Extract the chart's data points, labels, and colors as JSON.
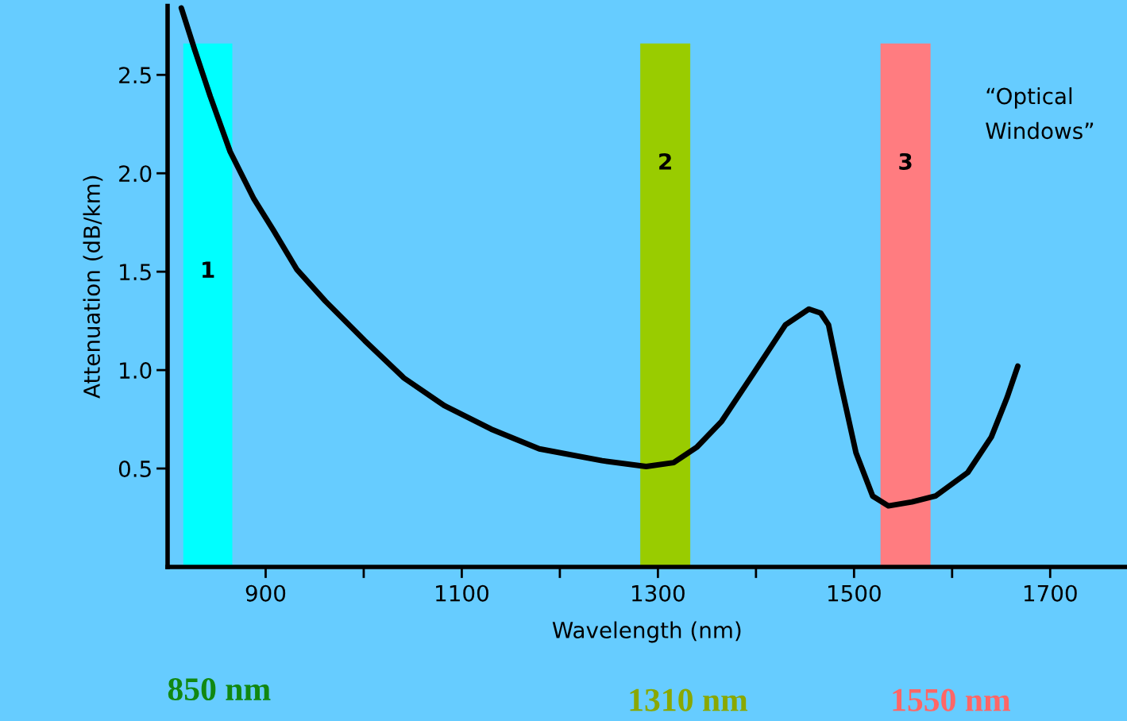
{
  "chart_data": {
    "type": "line",
    "xlabel": "Wavelength (nm)",
    "ylabel": "Attenuation (dB/km)",
    "xlim": [
      800,
      1778
    ],
    "ylim": [
      0,
      2.85
    ],
    "xticks": [
      900,
      {
        "value": 1000,
        "label": null
      },
      1100,
      {
        "value": 1200,
        "label": null
      },
      1300,
      {
        "value": 1400,
        "label": null
      },
      1500,
      {
        "value": 1600,
        "label": null
      },
      1700
    ],
    "yticks": [
      0.5,
      {
        "value": 1,
        "label": "1.0"
      },
      1.5,
      {
        "value": 2,
        "label": "2.0"
      },
      2.5
    ],
    "grid": false,
    "legend": false,
    "marker": "none",
    "line_style": "solid",
    "series": [
      {
        "color": "#000000",
        "x": [
          814,
          827.5,
          843.6,
          863.8,
          888,
          908,
          932,
          961,
          1001,
          1041,
          1082,
          1130,
          1179,
          1243,
          1288,
          1316,
          1340,
          1365,
          1397,
          1430,
          1454,
          1466,
          1474,
          1486,
          1502,
          1519,
          1535,
          1559,
          1583,
          1616,
          1640,
          1656,
          1667
        ],
        "values": [
          2.84,
          2.63,
          2.39,
          2.11,
          1.87,
          1.71,
          1.51,
          1.35,
          1.15,
          0.96,
          0.82,
          0.7,
          0.6,
          0.54,
          0.51,
          0.53,
          0.61,
          0.74,
          0.98,
          1.23,
          1.31,
          1.29,
          1.23,
          0.94,
          0.58,
          0.36,
          0.31,
          0.33,
          0.36,
          0.48,
          0.66,
          0.86,
          1.02
        ]
      }
    ],
    "bands": [
      {
        "axis": "x",
        "from": 816,
        "to": 866,
        "label": "1",
        "color": "#00ffff"
      },
      {
        "axis": "x",
        "from": 1282,
        "to": 1333,
        "label": "2",
        "color": "#99cc00"
      },
      {
        "axis": "x",
        "from": 1527,
        "to": 1578,
        "label": "3",
        "color": "#ff7c80"
      }
    ],
    "annotations": [
      "“Optical\nWindows”",
      "850 nm",
      "1310 nm",
      "1550 nm"
    ]
  }
}
